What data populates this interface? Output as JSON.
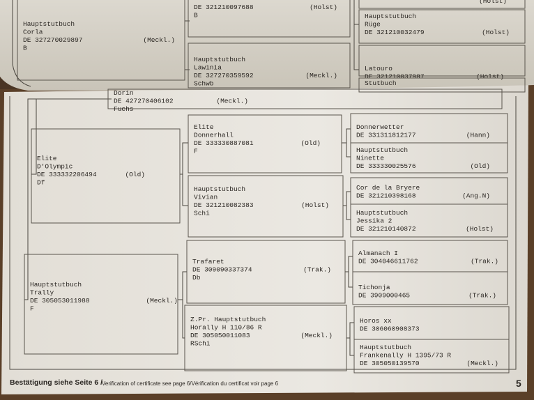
{
  "top_page": {
    "boxes": [
      {
        "lines": [
          "Hauptstutbuch",
          "Corla"
        ],
        "id": "DE 327270029897",
        "region": "(Meckl.)",
        "tail": [
          "B"
        ]
      },
      {
        "id": "DE 321210097688",
        "region": "(Holst)",
        "tail": [
          "B"
        ]
      },
      {
        "lines": [
          "Hauptstutbuch",
          "Lawinia"
        ],
        "id": "DE 327270359592",
        "region": "(Meckl.)",
        "tail": [
          "Schwb"
        ]
      },
      {
        "region": "(Holst)"
      },
      {
        "lines": [
          "Hauptstutbuch",
          "Rüge"
        ],
        "id": "DE 321210032479",
        "region": "(Holst)"
      },
      {
        "lines": [
          "Latouro"
        ],
        "id": "DE 321210037987",
        "region": "(Holst)"
      },
      {
        "lines": [
          "Stutbuch"
        ]
      }
    ]
  },
  "pedigree": {
    "boxes": [
      {
        "lines": [
          "Dorin"
        ],
        "id": "DE 427270406102",
        "region": "(Meckl.)",
        "tail": [
          "Fuchs"
        ]
      },
      {
        "lines": [
          "Elite",
          "D'Olympic"
        ],
        "id": "DE 333332206494",
        "region": "(Old)",
        "tail": [
          "Df"
        ]
      },
      {
        "lines": [
          "Hauptstutbuch",
          "Trally"
        ],
        "id": "DE 305053011988",
        "region": "(Meckl.)",
        "tail": [
          "F"
        ]
      },
      {
        "lines": [
          "Elite",
          "Donnerhall"
        ],
        "id": "DE 333330887081",
        "region": "(Old)",
        "tail": [
          "F"
        ]
      },
      {
        "lines": [
          "Hauptstutbuch",
          "Vivian"
        ],
        "id": "DE 321210082383",
        "region": "(Holst)",
        "tail": [
          "Schi"
        ]
      },
      {
        "lines": [
          "Trafaret"
        ],
        "id": "DE 309090337374",
        "region": "(Trak.)",
        "tail": [
          "Db"
        ]
      },
      {
        "lines": [
          "Z.Pr. Hauptstutbuch",
          "Horally H 110/86 R"
        ],
        "id": "DE 305050011083",
        "region": "(Meckl.)",
        "tail": [
          "RSchi"
        ]
      },
      {
        "lines": [
          "Donnerwetter"
        ],
        "id": "DE 331311812177",
        "region": "(Hann)"
      },
      {
        "lines": [
          "Hauptstutbuch",
          "Ninette"
        ],
        "id": "DE 333330025576",
        "region": "(Old)"
      },
      {
        "lines": [
          "Cor de la Bryere"
        ],
        "id": "DE 321210398168",
        "region": "(Ang.N)"
      },
      {
        "lines": [
          "Hauptstutbuch",
          "Jessika 2"
        ],
        "id": "DE 321210140872",
        "region": "(Holst)"
      },
      {
        "lines": [
          "Almanach I"
        ],
        "id": "DE 304046611762",
        "region": "(Trak.)"
      },
      {
        "lines": [
          "Tichonja"
        ],
        "id": "DE 3909000465",
        "region": "(Trak.)"
      },
      {
        "lines": [
          "Horos xx"
        ],
        "id": "DE 306060908373"
      },
      {
        "lines": [
          "Hauptstutbuch",
          "Frankenally H 1395/73 R"
        ],
        "id": "DE 305050139570",
        "region": "(Meckl.)"
      }
    ]
  },
  "footer": {
    "confirmation": "Bestätigung siehe Seite 6 /",
    "translation": "Verification of certificate see page 6/Vérification du certificat voir page 6",
    "page_number": "5"
  }
}
